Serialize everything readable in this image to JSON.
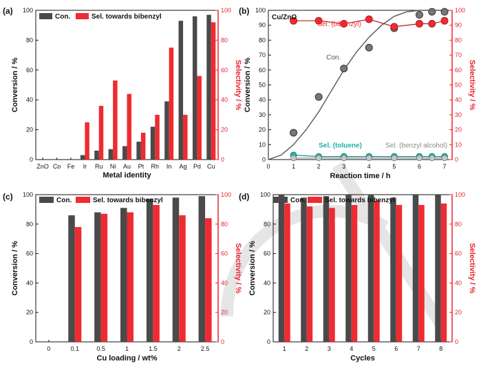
{
  "colors": {
    "conversion": "#4a4a4a",
    "selectivity": "#ef2b32",
    "toluene": "#20b2a6",
    "alcohol": "#9a9a9a",
    "axis_right": "#e8242e"
  },
  "chart_data": [
    {
      "panel": "(a)",
      "type": "bar",
      "categories": [
        "ZnO",
        "Co",
        "Fe",
        "Ir",
        "Ru",
        "Ni",
        "Au",
        "Pt",
        "Rh",
        "In",
        "Ag",
        "Pd",
        "Cu"
      ],
      "series": [
        {
          "name": "Con.",
          "values": [
            0,
            0,
            0,
            3,
            6,
            7,
            9,
            12,
            22,
            39,
            93,
            96,
            97
          ]
        },
        {
          "name": "Sel. towards bibenzyl",
          "values": [
            0,
            0,
            0,
            25,
            36,
            53,
            44,
            18,
            30,
            75,
            30,
            56,
            92
          ]
        }
      ],
      "xlabel": "Metal identity",
      "ylabel": "Conversion / %",
      "y2label": "Selectivity / %",
      "ylim": [
        0,
        100
      ],
      "y2lim": [
        0,
        100
      ],
      "yticks": [
        0,
        20,
        40,
        60,
        80,
        100
      ],
      "legend": "top-left"
    },
    {
      "panel": "(b)",
      "type": "line",
      "title": "Cu/ZnO",
      "x": [
        0,
        1,
        2,
        3,
        4,
        5,
        6,
        6.5,
        7
      ],
      "series": [
        {
          "name": "Con.",
          "x": [
            1,
            2,
            3,
            4,
            5,
            6,
            6.5,
            7
          ],
          "values": [
            18,
            42,
            61,
            75,
            88,
            97,
            99,
            99
          ],
          "curve": [
            0,
            3,
            10,
            20,
            32,
            46,
            60,
            72,
            82,
            90,
            96,
            99,
            100
          ]
        },
        {
          "name": "Sel. (bibenzyl)",
          "x": [
            1,
            2,
            3,
            4,
            5,
            6,
            6.5,
            7
          ],
          "values": [
            93,
            93,
            91,
            94,
            89,
            91,
            91,
            93
          ]
        },
        {
          "name": "Sel. (toluene)",
          "x": [
            1,
            2,
            3,
            4,
            5,
            6,
            6.5,
            7
          ],
          "values": [
            3,
            2,
            2,
            2,
            2,
            2,
            2,
            2
          ]
        },
        {
          "name": "Sel. (benzyl alcohol)",
          "x": [
            1,
            2,
            3,
            4,
            5,
            6,
            6.5,
            7
          ],
          "values": [
            1,
            1,
            1,
            1,
            1,
            1,
            1,
            1
          ]
        }
      ],
      "annotations": {
        "con": "Con.",
        "sel_bibenzyl": "Sel. (bibenzyl)",
        "sel_toluene": "Sel. (toluene)",
        "sel_alcohol": "Sel. (benzyl alcohol)"
      },
      "xticks": [
        0,
        1,
        2,
        3,
        4,
        5,
        6,
        7
      ],
      "xlabel": "Reaction time / h",
      "ylabel": "Conversion / %",
      "y2label": "Selectivity / %",
      "xlim": [
        0,
        7.3
      ],
      "ylim": [
        0,
        100
      ],
      "y2lim": [
        0,
        100
      ],
      "yticks": [
        0,
        10,
        20,
        30,
        40,
        50,
        60,
        70,
        80,
        90,
        100
      ]
    },
    {
      "panel": "(c)",
      "type": "bar",
      "categories": [
        "0",
        "0.1",
        "0.5",
        "1",
        "1.5",
        "2",
        "2.5"
      ],
      "series": [
        {
          "name": "Con.",
          "values": [
            0,
            86,
            88,
            91,
            97,
            98,
            99
          ]
        },
        {
          "name": "Sel. towards bibenzyl",
          "values": [
            0,
            78,
            87,
            88,
            93,
            86,
            84
          ]
        }
      ],
      "xlabel": "Cu loading / wt%",
      "ylabel": "Conversion / %",
      "y2label": "Selectivity / %",
      "ylim": [
        0,
        100
      ],
      "y2lim": [
        0,
        100
      ],
      "yticks": [
        0,
        20,
        40,
        60,
        80,
        100
      ],
      "legend": "top"
    },
    {
      "panel": "(d)",
      "type": "bar",
      "categories": [
        "1",
        "2",
        "3",
        "4",
        "5",
        "6",
        "7",
        "8"
      ],
      "series": [
        {
          "name": "Con.",
          "values": [
            100,
            98,
            99,
            100,
            100,
            98,
            100,
            100
          ]
        },
        {
          "name": "Sel. towards bibenzyl",
          "values": [
            94,
            92,
            91,
            93,
            96,
            93,
            93,
            94
          ]
        }
      ],
      "xlabel": "Cycles",
      "ylabel": "Conversion / %",
      "y2label": "Selectivity / %",
      "ylim": [
        0,
        100
      ],
      "y2lim": [
        0,
        100
      ],
      "yticks": [
        0,
        20,
        40,
        60,
        80,
        100
      ],
      "legend": "top"
    }
  ]
}
